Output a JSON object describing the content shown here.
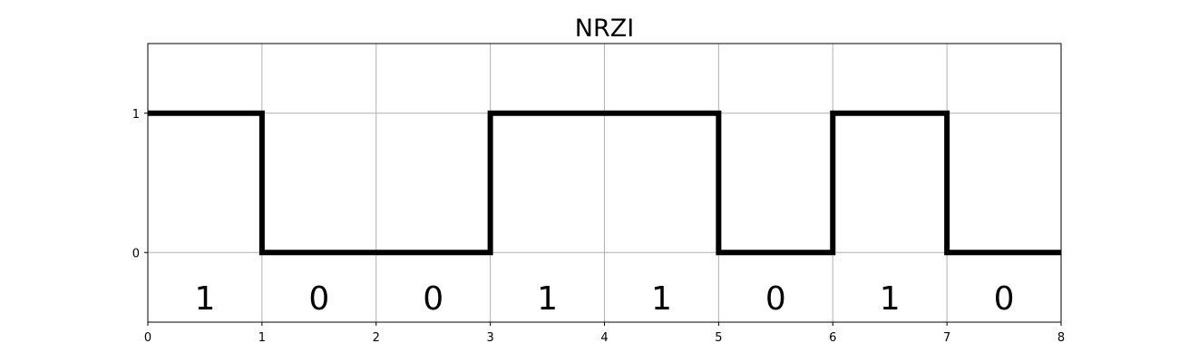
{
  "chart_data": {
    "type": "line",
    "title": "NRZI",
    "xlabel": "",
    "ylabel": "",
    "xlim": [
      0,
      8
    ],
    "ylim": [
      -0.5,
      1.5
    ],
    "x_ticks": [
      0,
      1,
      2,
      3,
      4,
      5,
      6,
      7,
      8
    ],
    "x_tick_labels": [
      "0",
      "1",
      "2",
      "3",
      "4",
      "5",
      "6",
      "7",
      "8"
    ],
    "y_ticks": [
      0,
      1
    ],
    "y_tick_labels": [
      "0",
      "1"
    ],
    "grid": true,
    "step": "post",
    "series": [
      {
        "x": [
          0,
          1,
          2,
          3,
          4,
          5,
          6,
          7,
          8
        ],
        "y": [
          1,
          0,
          0,
          1,
          1,
          0,
          1,
          0,
          0
        ],
        "color": "#000000"
      }
    ],
    "bits": [
      "1",
      "0",
      "0",
      "1",
      "1",
      "0",
      "1",
      "0"
    ],
    "bit_label_y": -0.33
  }
}
